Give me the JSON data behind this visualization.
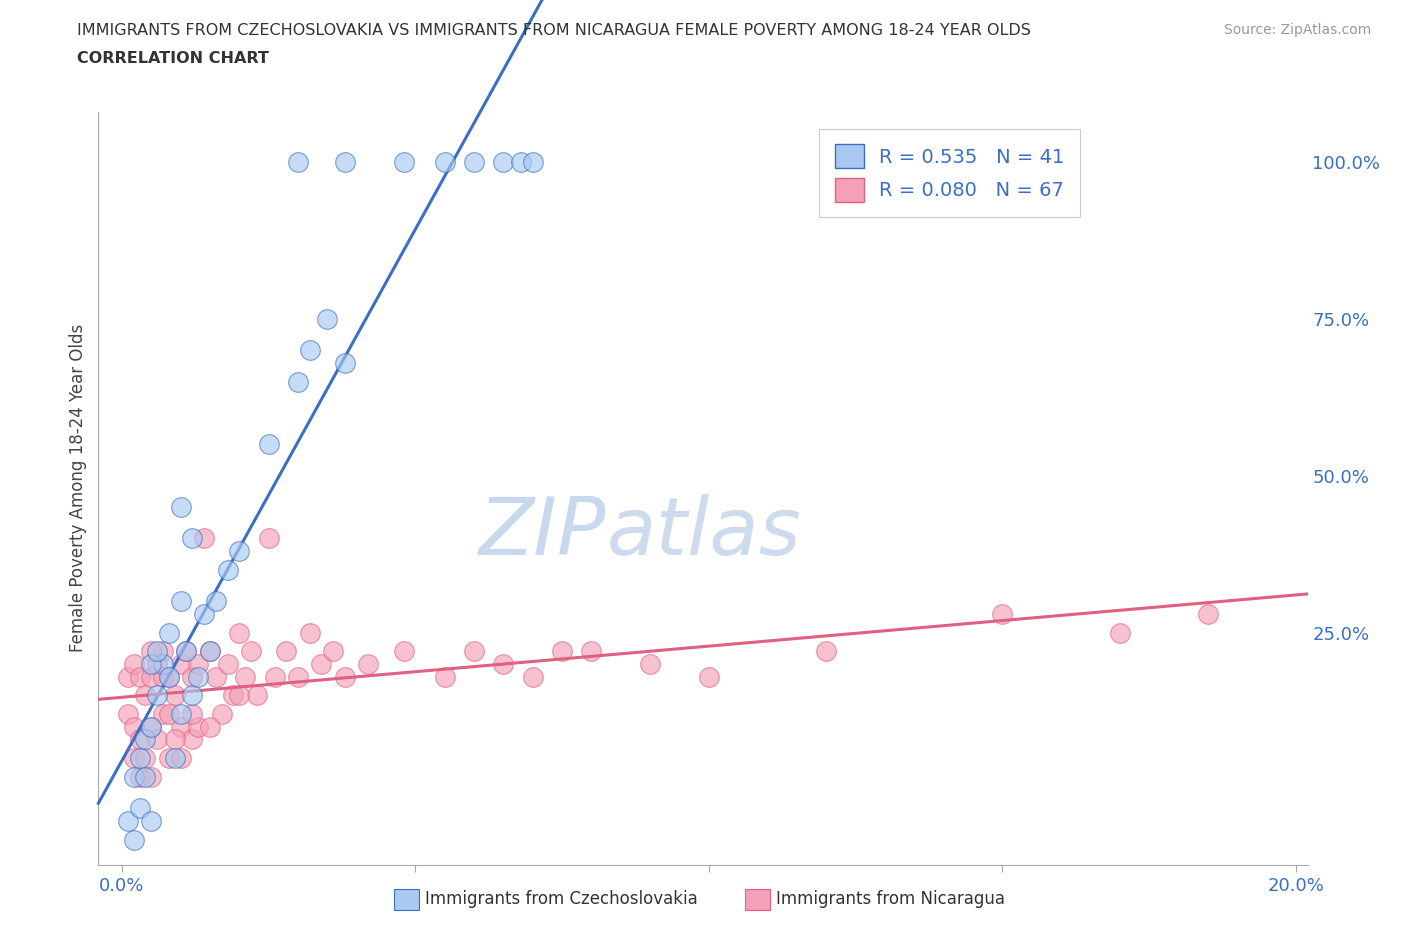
{
  "title_line1": "IMMIGRANTS FROM CZECHOSLOVAKIA VS IMMIGRANTS FROM NICARAGUA FEMALE POVERTY AMONG 18-24 YEAR OLDS",
  "title_line2": "CORRELATION CHART",
  "source_text": "Source: ZipAtlas.com",
  "ylabel": "Female Poverty Among 18-24 Year Olds",
  "legend_label1": "Immigrants from Czechoslovakia",
  "legend_label2": "Immigrants from Nicaragua",
  "R1": 0.535,
  "N1": 41,
  "R2": 0.08,
  "N2": 67,
  "color1": "#a8c8f0",
  "color2": "#f4a0b8",
  "line_color1": "#3a6fc4",
  "line_color2": "#e06080",
  "xlim": [
    -0.004,
    0.202
  ],
  "ylim": [
    -0.12,
    1.08
  ],
  "yticks_right": [
    1.0,
    0.75,
    0.5,
    0.25
  ],
  "ytick_right_labels": [
    "100.0%",
    "75.0%",
    "50.0%",
    "25.0%"
  ],
  "grid_color": "#cccccc",
  "watermark_zip": "ZIP",
  "watermark_atlas": "atlas",
  "watermark_color": "#c8d8ee",
  "background_color": "#ffffff",
  "scatter1_x": [
    0.001,
    0.002,
    0.002,
    0.003,
    0.003,
    0.004,
    0.004,
    0.005,
    0.005,
    0.006,
    0.007,
    0.008,
    0.009,
    0.01,
    0.011,
    0.012,
    0.013,
    0.014,
    0.015,
    0.016,
    0.018,
    0.02,
    0.025,
    0.03,
    0.032,
    0.035,
    0.038,
    0.012,
    0.01,
    0.03,
    0.038,
    0.048,
    0.055,
    0.06,
    0.065,
    0.068,
    0.07,
    0.005,
    0.006,
    0.008,
    0.01
  ],
  "scatter1_y": [
    -0.05,
    0.02,
    -0.08,
    0.05,
    -0.03,
    0.08,
    0.02,
    0.1,
    -0.05,
    0.15,
    0.2,
    0.18,
    0.05,
    0.12,
    0.22,
    0.15,
    0.18,
    0.28,
    0.22,
    0.3,
    0.35,
    0.38,
    0.55,
    0.65,
    0.7,
    0.75,
    0.68,
    0.4,
    0.45,
    1.0,
    1.0,
    1.0,
    1.0,
    1.0,
    1.0,
    1.0,
    1.0,
    0.2,
    0.22,
    0.25,
    0.3
  ],
  "scatter2_x": [
    0.001,
    0.001,
    0.002,
    0.002,
    0.002,
    0.003,
    0.003,
    0.003,
    0.004,
    0.004,
    0.005,
    0.005,
    0.005,
    0.006,
    0.006,
    0.007,
    0.007,
    0.008,
    0.008,
    0.009,
    0.01,
    0.01,
    0.01,
    0.011,
    0.012,
    0.012,
    0.013,
    0.013,
    0.014,
    0.015,
    0.016,
    0.017,
    0.018,
    0.019,
    0.02,
    0.021,
    0.022,
    0.023,
    0.025,
    0.026,
    0.028,
    0.03,
    0.032,
    0.034,
    0.036,
    0.038,
    0.042,
    0.048,
    0.055,
    0.06,
    0.065,
    0.07,
    0.075,
    0.08,
    0.09,
    0.1,
    0.12,
    0.15,
    0.17,
    0.185,
    0.005,
    0.007,
    0.008,
    0.009,
    0.012,
    0.015,
    0.02
  ],
  "scatter2_y": [
    0.18,
    0.12,
    0.2,
    0.1,
    0.05,
    0.18,
    0.08,
    0.02,
    0.15,
    0.05,
    0.18,
    0.1,
    0.02,
    0.2,
    0.08,
    0.22,
    0.12,
    0.18,
    0.05,
    0.15,
    0.2,
    0.1,
    0.05,
    0.22,
    0.18,
    0.08,
    0.2,
    0.1,
    0.4,
    0.22,
    0.18,
    0.12,
    0.2,
    0.15,
    0.25,
    0.18,
    0.22,
    0.15,
    0.4,
    0.18,
    0.22,
    0.18,
    0.25,
    0.2,
    0.22,
    0.18,
    0.2,
    0.22,
    0.18,
    0.22,
    0.2,
    0.18,
    0.22,
    0.22,
    0.2,
    0.18,
    0.22,
    0.28,
    0.25,
    0.28,
    0.22,
    0.18,
    0.12,
    0.08,
    0.12,
    0.1,
    0.15
  ]
}
